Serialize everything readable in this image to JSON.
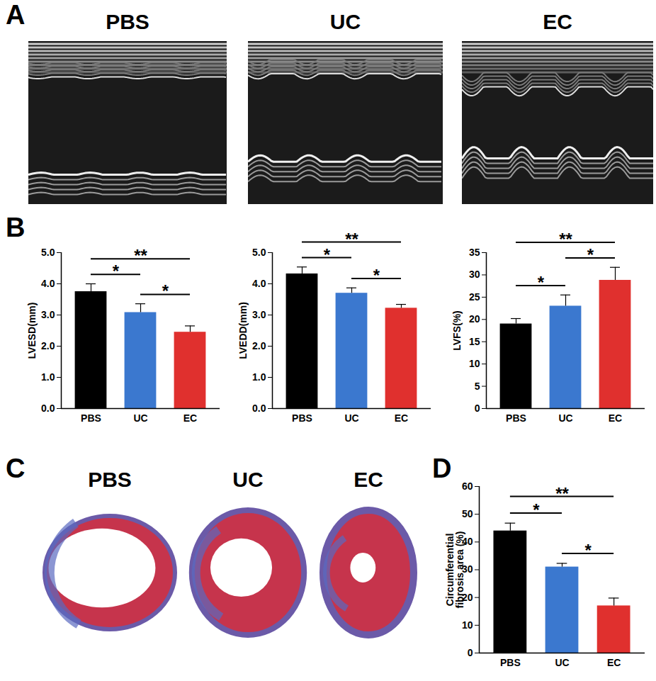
{
  "figure": {
    "panels": [
      {
        "label": "A",
        "image_titles": [
          "PBS",
          "UC",
          "EC"
        ]
      },
      {
        "label": "B"
      },
      {
        "label": "C",
        "image_titles": [
          "PBS",
          "UC",
          "EC"
        ]
      },
      {
        "label": "D"
      }
    ]
  },
  "chart_data": [
    {
      "type": "bar",
      "ylabel": "LVESD(mm)",
      "categories": [
        "PBS",
        "UC",
        "EC"
      ],
      "values": [
        3.75,
        3.08,
        2.45
      ],
      "errors": [
        0.25,
        0.28,
        0.2
      ],
      "colors": [
        "#000000",
        "#3b78cf",
        "#e0302e"
      ],
      "ylim": [
        0,
        5
      ],
      "yticks": [
        0,
        1,
        2,
        3,
        4,
        5
      ],
      "annotations": [
        {
          "from": "PBS",
          "to": "EC",
          "label": "**"
        },
        {
          "from": "PBS",
          "to": "UC",
          "label": "*"
        },
        {
          "from": "UC",
          "to": "EC",
          "label": "*"
        }
      ]
    },
    {
      "type": "bar",
      "ylabel": "LVEDD(mm)",
      "categories": [
        "PBS",
        "UC",
        "EC"
      ],
      "values": [
        4.32,
        3.7,
        3.22
      ],
      "errors": [
        0.22,
        0.17,
        0.12
      ],
      "colors": [
        "#000000",
        "#3b78cf",
        "#e0302e"
      ],
      "ylim": [
        0,
        5
      ],
      "yticks": [
        0,
        1,
        2,
        3,
        4,
        5
      ],
      "annotations": [
        {
          "from": "PBS",
          "to": "EC",
          "label": "**"
        },
        {
          "from": "PBS",
          "to": "UC",
          "label": "*"
        },
        {
          "from": "UC",
          "to": "EC",
          "label": "*"
        }
      ]
    },
    {
      "type": "bar",
      "ylabel": "LVFS(%)",
      "categories": [
        "PBS",
        "UC",
        "EC"
      ],
      "values": [
        19,
        23,
        28.8
      ],
      "errors": [
        1.2,
        2.5,
        2.9
      ],
      "colors": [
        "#000000",
        "#3b78cf",
        "#e0302e"
      ],
      "ylim": [
        0,
        35
      ],
      "yticks": [
        0,
        5,
        10,
        15,
        20,
        25,
        30,
        35
      ],
      "annotations": [
        {
          "from": "PBS",
          "to": "EC",
          "label": "**"
        },
        {
          "from": "PBS",
          "to": "UC",
          "label": "*"
        },
        {
          "from": "UC",
          "to": "EC",
          "label": "*"
        }
      ]
    },
    {
      "type": "bar",
      "ylabel": "Circumferential\nfibrosis area (%)",
      "categories": [
        "PBS",
        "UC",
        "EC"
      ],
      "values": [
        44,
        31,
        17
      ],
      "errors": [
        2.8,
        1.3,
        2.8
      ],
      "colors": [
        "#000000",
        "#3b78cf",
        "#e0302e"
      ],
      "ylim": [
        0,
        60
      ],
      "yticks": [
        0,
        10,
        20,
        30,
        40,
        50,
        60
      ],
      "annotations": [
        {
          "from": "PBS",
          "to": "EC",
          "label": "**"
        },
        {
          "from": "PBS",
          "to": "UC",
          "label": "*"
        },
        {
          "from": "UC",
          "to": "EC",
          "label": "*"
        }
      ]
    }
  ]
}
